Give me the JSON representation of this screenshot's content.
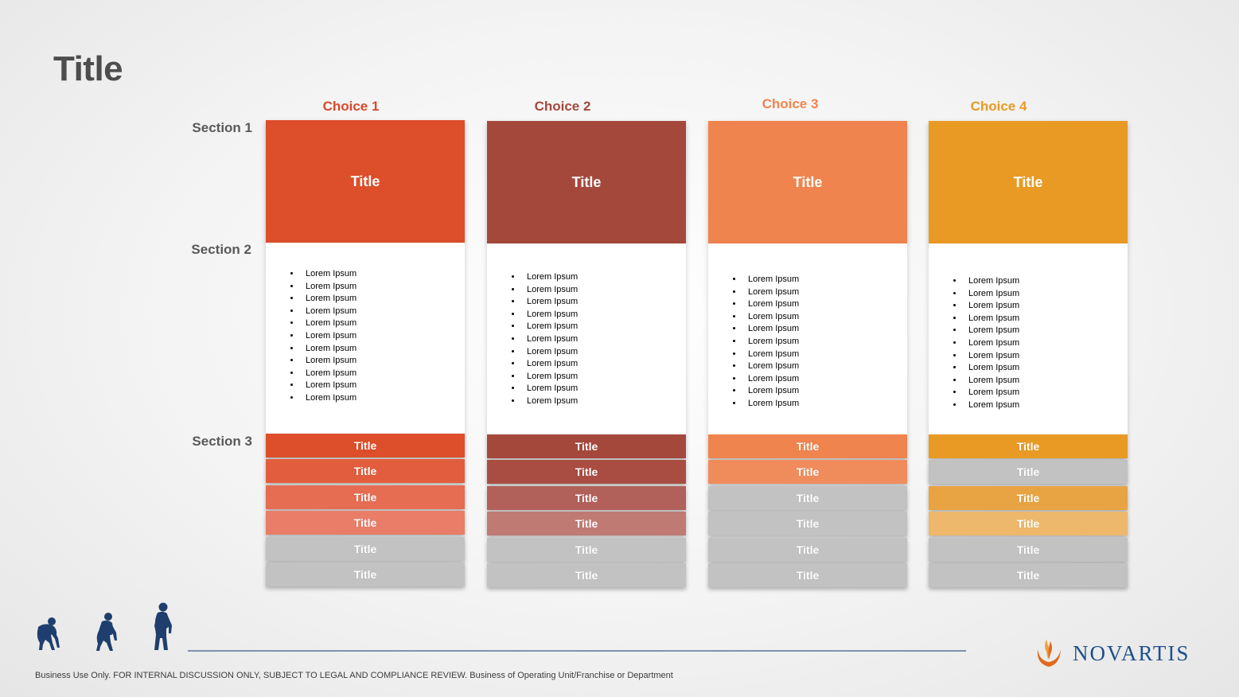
{
  "slide": {
    "title": "Title"
  },
  "sections": [
    "Section 1",
    "Section 2",
    "Section 3"
  ],
  "colors": {
    "choice1": "#DD4E2A",
    "choice2": "#A5483C",
    "choice3": "#F0844E",
    "choice4": "#E99A24",
    "inactive": "#C2C2C2",
    "title_text": "#4D4D4D",
    "logo_blue": "#1E4F8C"
  },
  "choices": [
    {
      "header": "Choice 1",
      "header_color": "#D9482B",
      "top_title": "Title",
      "items": [
        "Lorem Ipsum",
        "Lorem Ipsum",
        "Lorem Ipsum",
        "Lorem Ipsum",
        "Lorem Ipsum",
        "Lorem Ipsum",
        "Lorem Ipsum",
        "Lorem Ipsum",
        "Lorem Ipsum",
        "Lorem Ipsum",
        "Lorem Ipsum"
      ],
      "stack": [
        {
          "label": "Title",
          "color": "#DD4E2A"
        },
        {
          "label": "Title",
          "color": "#E25D3E"
        },
        {
          "label": "Title",
          "color": "#E66C52"
        },
        {
          "label": "Title",
          "color": "#E97D68"
        },
        {
          "label": "Title",
          "color": "#C2C2C2"
        },
        {
          "label": "Title",
          "color": "#C2C2C2"
        }
      ]
    },
    {
      "header": "Choice 2",
      "header_color": "#A5483C",
      "top_title": "Title",
      "items": [
        "Lorem Ipsum",
        "Lorem Ipsum",
        "Lorem Ipsum",
        "Lorem Ipsum",
        "Lorem Ipsum",
        "Lorem Ipsum",
        "Lorem Ipsum",
        "Lorem Ipsum",
        "Lorem Ipsum",
        "Lorem Ipsum",
        "Lorem Ipsum"
      ],
      "stack": [
        {
          "label": "Title",
          "color": "#A5483C"
        },
        {
          "label": "Title",
          "color": "#A94D43"
        },
        {
          "label": "Title",
          "color": "#B2605A"
        },
        {
          "label": "Title",
          "color": "#C07A74"
        },
        {
          "label": "Title",
          "color": "#C2C2C2"
        },
        {
          "label": "Title",
          "color": "#C2C2C2"
        }
      ]
    },
    {
      "header": "Choice 3",
      "header_color": "#F0844E",
      "top_title": "Title",
      "items": [
        "Lorem Ipsum",
        "Lorem Ipsum",
        "Lorem Ipsum",
        "Lorem Ipsum",
        "Lorem Ipsum",
        "Lorem Ipsum",
        "Lorem Ipsum",
        "Lorem Ipsum",
        "Lorem Ipsum",
        "Lorem Ipsum",
        "Lorem Ipsum"
      ],
      "stack": [
        {
          "label": "Title",
          "color": "#F0844E"
        },
        {
          "label": "Title",
          "color": "#F08C5C"
        },
        {
          "label": "Title",
          "color": "#C2C2C2"
        },
        {
          "label": "Title",
          "color": "#C2C2C2"
        },
        {
          "label": "Title",
          "color": "#C2C2C2"
        },
        {
          "label": "Title",
          "color": "#C2C2C2"
        }
      ]
    },
    {
      "header": "Choice 4",
      "header_color": "#E99A24",
      "top_title": "Title",
      "items": [
        "Lorem Ipsum",
        "Lorem Ipsum",
        "Lorem Ipsum",
        "Lorem Ipsum",
        "Lorem Ipsum",
        "Lorem Ipsum",
        "Lorem Ipsum",
        "Lorem Ipsum",
        "Lorem Ipsum",
        "Lorem Ipsum",
        "Lorem Ipsum"
      ],
      "stack": [
        {
          "label": "Title",
          "color": "#E99A24"
        },
        {
          "label": "Title",
          "color": "#C2C2C2"
        },
        {
          "label": "Title",
          "color": "#E8A443"
        },
        {
          "label": "Title",
          "color": "#EDB86B"
        },
        {
          "label": "Title",
          "color": "#C2C2C2"
        },
        {
          "label": "Title",
          "color": "#C2C2C2"
        }
      ]
    }
  ],
  "footer": {
    "disclaimer": "Business Use Only.  FOR INTERNAL DISCUSSION ONLY, SUBJECT TO LEGAL AND COMPLIANCE REVIEW.  Business of Operating Unit/Franchise or Department",
    "logo_text": "NOVARTIS"
  }
}
